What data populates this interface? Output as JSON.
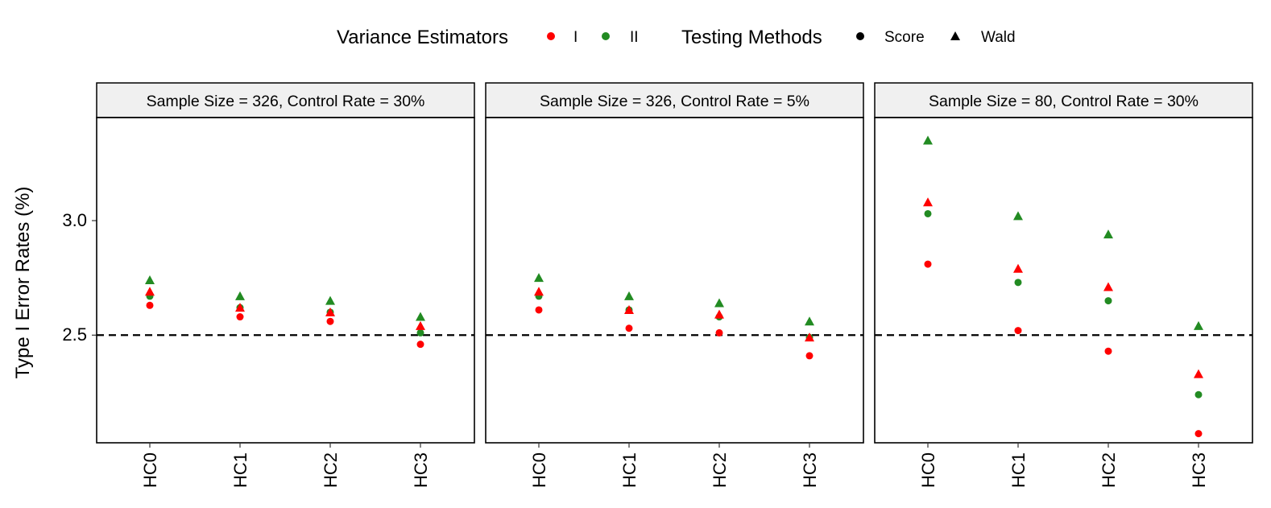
{
  "chart_data": {
    "type": "scatter",
    "ylabel": "Type I Error Rates (%)",
    "yticks": [
      2.5,
      3.0
    ],
    "ytick_labels": [
      "2.5",
      "3.0"
    ],
    "ylim": [
      2.03,
      3.45
    ],
    "reference_line": 2.5,
    "categories": [
      "HC0",
      "HC1",
      "HC2",
      "HC3"
    ],
    "legend": {
      "color_title": "Variance Estimators",
      "colors": [
        {
          "label": "I",
          "color": "#ff0000"
        },
        {
          "label": "II",
          "color": "#228b22"
        }
      ],
      "shape_title": "Testing Methods",
      "shapes": [
        {
          "label": "Score",
          "shape": "circle"
        },
        {
          "label": "Wald",
          "shape": "triangle"
        }
      ]
    },
    "panels": [
      {
        "title": "Sample Size = 326, Control Rate = 30%",
        "series": [
          {
            "estimator": "I",
            "method": "Score",
            "values": [
              2.63,
              2.58,
              2.56,
              2.46
            ]
          },
          {
            "estimator": "II",
            "method": "Score",
            "values": [
              2.67,
              2.62,
              2.6,
              2.51
            ]
          },
          {
            "estimator": "I",
            "method": "Wald",
            "values": [
              2.69,
              2.62,
              2.6,
              2.54
            ]
          },
          {
            "estimator": "II",
            "method": "Wald",
            "values": [
              2.74,
              2.67,
              2.65,
              2.58
            ]
          }
        ]
      },
      {
        "title": "Sample Size = 326, Control Rate = 5%",
        "series": [
          {
            "estimator": "I",
            "method": "Score",
            "values": [
              2.61,
              2.53,
              2.51,
              2.41
            ]
          },
          {
            "estimator": "II",
            "method": "Score",
            "values": [
              2.67,
              2.61,
              2.58,
              2.49
            ]
          },
          {
            "estimator": "I",
            "method": "Wald",
            "values": [
              2.69,
              2.61,
              2.59,
              2.49
            ]
          },
          {
            "estimator": "II",
            "method": "Wald",
            "values": [
              2.75,
              2.67,
              2.64,
              2.56
            ]
          }
        ]
      },
      {
        "title": "Sample Size = 80, Control Rate = 30%",
        "series": [
          {
            "estimator": "I",
            "method": "Score",
            "values": [
              2.81,
              2.52,
              2.43,
              2.07
            ]
          },
          {
            "estimator": "II",
            "method": "Score",
            "values": [
              3.03,
              2.73,
              2.65,
              2.24
            ]
          },
          {
            "estimator": "I",
            "method": "Wald",
            "values": [
              3.08,
              2.79,
              2.71,
              2.33
            ]
          },
          {
            "estimator": "II",
            "method": "Wald",
            "values": [
              3.35,
              3.02,
              2.94,
              2.54
            ]
          }
        ]
      }
    ]
  }
}
